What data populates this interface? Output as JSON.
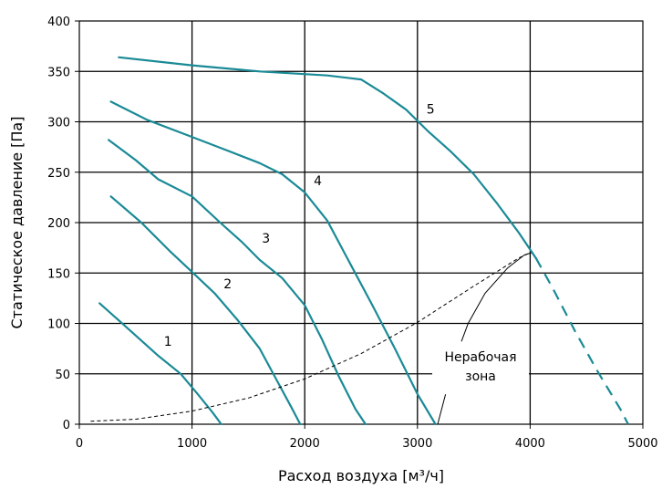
{
  "chart_data": {
    "type": "line",
    "title": "",
    "xlabel": "Расход воздуха [м³/ч]",
    "ylabel": "Статическое давление [Па]",
    "xlim": [
      0,
      5000
    ],
    "ylim": [
      0,
      400
    ],
    "x_ticks": [
      0,
      1000,
      2000,
      3000,
      4000,
      5000
    ],
    "y_ticks": [
      0,
      50,
      100,
      150,
      200,
      250,
      300,
      350,
      400
    ],
    "grid": true,
    "colors": {
      "curve": "#1a8a96",
      "grid": "#000000",
      "system": "#000000"
    },
    "series": [
      {
        "name": "1",
        "label_at": [
          750,
          78
        ],
        "points": [
          [
            180,
            120
          ],
          [
            450,
            93
          ],
          [
            700,
            68
          ],
          [
            900,
            50
          ],
          [
            1050,
            30
          ],
          [
            1180,
            12
          ],
          [
            1260,
            0
          ]
        ]
      },
      {
        "name": "2",
        "label_at": [
          1280,
          135
        ],
        "points": [
          [
            280,
            226
          ],
          [
            550,
            200
          ],
          [
            800,
            172
          ],
          [
            1000,
            151
          ],
          [
            1200,
            130
          ],
          [
            1400,
            104
          ],
          [
            1600,
            75
          ],
          [
            1760,
            42
          ],
          [
            1880,
            17
          ],
          [
            1960,
            0
          ]
        ]
      },
      {
        "name": "3",
        "label_at": [
          1620,
          180
        ],
        "points": [
          [
            260,
            282
          ],
          [
            500,
            262
          ],
          [
            700,
            243
          ],
          [
            1000,
            226
          ],
          [
            1250,
            200
          ],
          [
            1450,
            180
          ],
          [
            1600,
            163
          ],
          [
            1800,
            145
          ],
          [
            2000,
            118
          ],
          [
            2150,
            85
          ],
          [
            2300,
            48
          ],
          [
            2450,
            15
          ],
          [
            2540,
            0
          ]
        ]
      },
      {
        "name": "4",
        "label_at": [
          2080,
          237
        ],
        "points": [
          [
            280,
            320
          ],
          [
            600,
            302
          ],
          [
            1000,
            285
          ],
          [
            1300,
            272
          ],
          [
            1600,
            259
          ],
          [
            1800,
            248
          ],
          [
            2000,
            230
          ],
          [
            2200,
            202
          ],
          [
            2400,
            160
          ],
          [
            2600,
            118
          ],
          [
            2800,
            75
          ],
          [
            3000,
            30
          ],
          [
            3160,
            0
          ]
        ]
      },
      {
        "name": "5",
        "label_at": [
          3080,
          308
        ],
        "points": [
          [
            350,
            364
          ],
          [
            1000,
            356
          ],
          [
            1600,
            350
          ],
          [
            2200,
            346
          ],
          [
            2500,
            342
          ],
          [
            2700,
            328
          ],
          [
            2900,
            312
          ],
          [
            3100,
            290
          ],
          [
            3300,
            270
          ],
          [
            3500,
            248
          ],
          [
            3700,
            220
          ],
          [
            3900,
            190
          ],
          [
            4050,
            165
          ]
        ],
        "dashed_continuation": [
          [
            4050,
            165
          ],
          [
            4200,
            135
          ],
          [
            4400,
            92
          ],
          [
            4600,
            52
          ],
          [
            4800,
            15
          ],
          [
            4870,
            0
          ]
        ]
      }
    ],
    "system_curve": {
      "style": "dashed",
      "points": [
        [
          100,
          3
        ],
        [
          500,
          5
        ],
        [
          1000,
          13
        ],
        [
          1500,
          26
        ],
        [
          2000,
          45
        ],
        [
          2500,
          70
        ],
        [
          3000,
          101
        ],
        [
          3500,
          137
        ],
        [
          3900,
          165
        ],
        [
          4000,
          170
        ]
      ]
    },
    "boundary_curve": {
      "style": "solid",
      "points": [
        [
          3180,
          0
        ],
        [
          3250,
          30
        ],
        [
          3350,
          70
        ],
        [
          3450,
          100
        ],
        [
          3600,
          130
        ],
        [
          3800,
          155
        ],
        [
          3950,
          168
        ],
        [
          4010,
          170
        ]
      ]
    },
    "annotations": [
      {
        "text": [
          "Нерабочая",
          "зона"
        ],
        "at": [
          3560,
          55
        ]
      }
    ]
  }
}
